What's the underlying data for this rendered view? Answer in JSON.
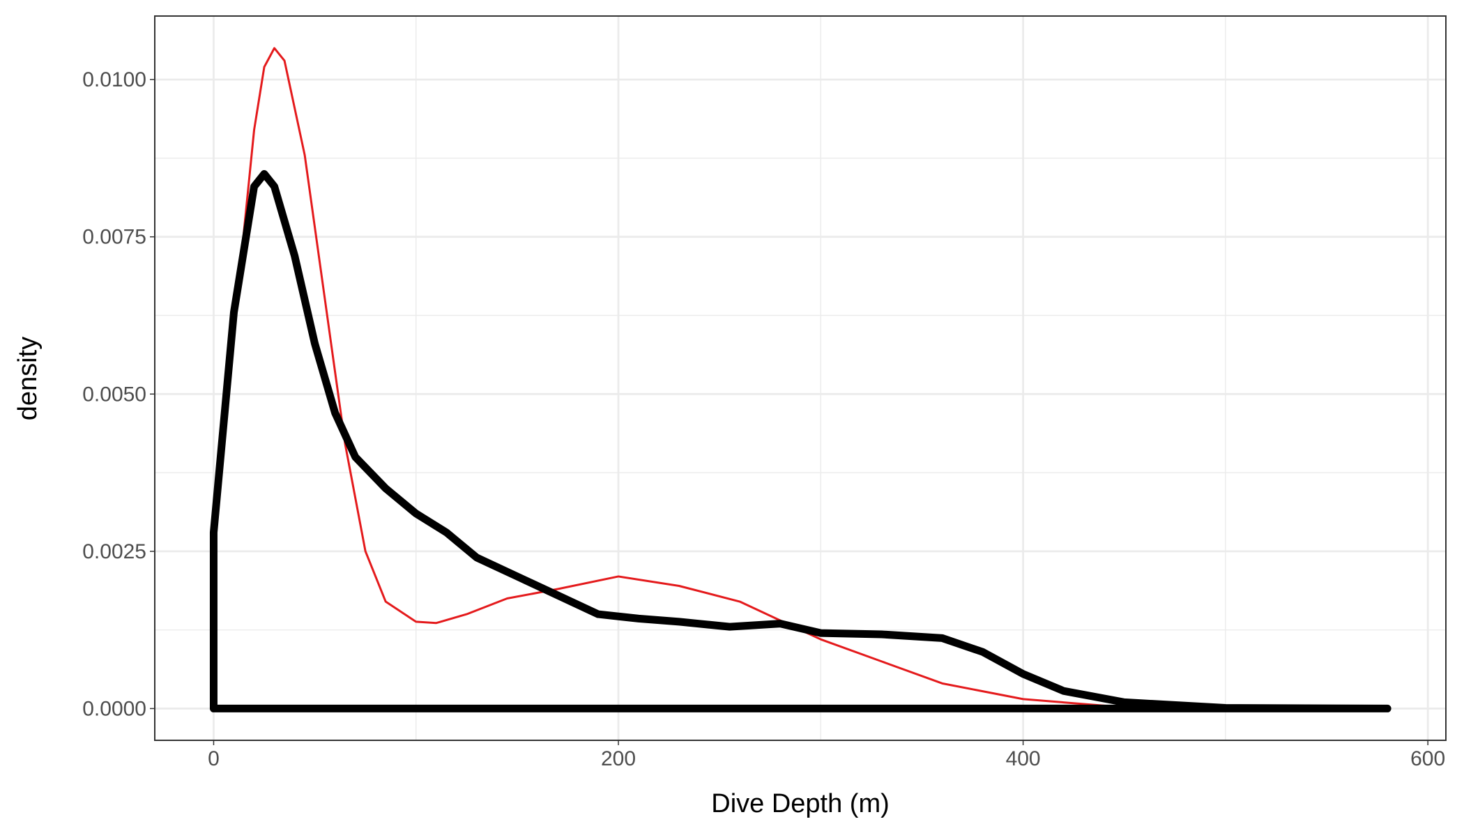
{
  "chart_data": {
    "type": "line",
    "x_label": "Dive Depth (m)",
    "y_label": "density",
    "xlim": [
      -29.1,
      608.9
    ],
    "ylim": [
      -0.000505,
      0.01101
    ],
    "xticks": [
      0,
      200,
      400,
      600
    ],
    "yticks": [
      {
        "value": 0,
        "label": "0.0000"
      },
      {
        "value": 0.0025,
        "label": "0.0025"
      },
      {
        "value": 0.005,
        "label": "0.0050"
      },
      {
        "value": 0.0075,
        "label": "0.0075"
      },
      {
        "value": 0.01,
        "label": "0.0100"
      }
    ],
    "x_minor_ticks": [
      100,
      300,
      500
    ],
    "y_minor_ticks": [
      0.00125,
      0.00375,
      0.00625,
      0.00875
    ],
    "grid": true,
    "series": [
      {
        "color": "#e41a1c",
        "line_width": 3,
        "x": [
          0,
          10,
          20,
          25,
          30,
          35,
          45,
          55,
          65,
          75,
          85,
          100,
          110,
          125,
          145,
          170,
          200,
          230,
          260,
          280,
          300,
          330,
          360,
          400,
          450,
          500,
          580
        ],
        "values": [
          0.0025,
          0.006,
          0.0092,
          0.0102,
          0.0105,
          0.0103,
          0.0088,
          0.0065,
          0.0042,
          0.0025,
          0.0017,
          0.00138,
          0.00136,
          0.0015,
          0.00175,
          0.0019,
          0.0021,
          0.00195,
          0.0017,
          0.0014,
          0.0011,
          0.00075,
          0.0004,
          0.00015,
          2e-05,
          0,
          0
        ]
      },
      {
        "color": "#000000",
        "line_width": 11,
        "x": [
          0,
          0,
          10,
          20,
          25,
          30,
          40,
          50,
          60,
          70,
          85,
          100,
          115,
          130,
          150,
          170,
          190,
          210,
          230,
          255,
          280,
          300,
          330,
          360,
          380,
          400,
          420,
          450,
          500,
          580,
          0
        ],
        "values": [
          0,
          0.0028,
          0.0063,
          0.0083,
          0.0085,
          0.0083,
          0.0072,
          0.0058,
          0.0047,
          0.004,
          0.0035,
          0.0031,
          0.0028,
          0.0024,
          0.0021,
          0.0018,
          0.0015,
          0.00143,
          0.00138,
          0.0013,
          0.00135,
          0.0012,
          0.00118,
          0.00112,
          0.0009,
          0.00055,
          0.00028,
          0.0001,
          1e-05,
          0,
          0
        ]
      }
    ]
  }
}
